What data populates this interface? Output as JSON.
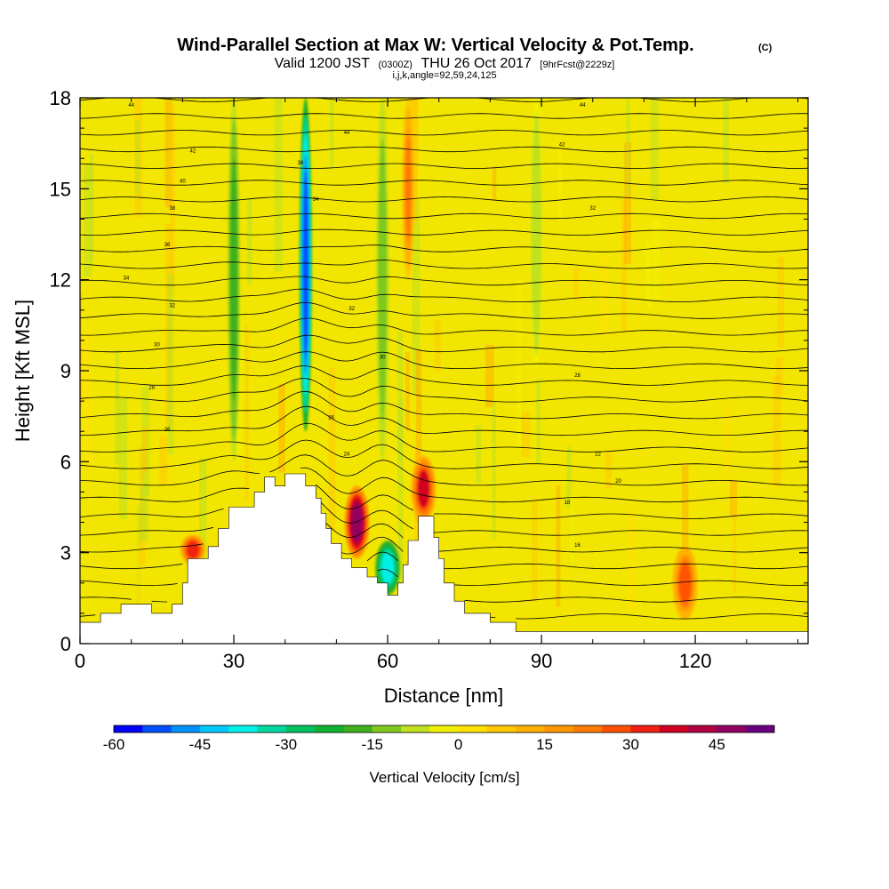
{
  "chart_data": {
    "type": "heatmap",
    "title": "Wind-Parallel Section at Max W: Vertical Velocity & Pot.Temp.",
    "title_mark": "(C)",
    "subtitle": {
      "valid": "Valid 1200 JST",
      "utc": "(0300Z)",
      "date": "THU 26 Oct 2017",
      "forecast": "[9hrFcst@2229z]"
    },
    "info_line": "i,j,k,angle=92,59,24,125",
    "xlabel": "Distance [nm]",
    "ylabel": "Height [Kft MSL]",
    "xlim": [
      0,
      142
    ],
    "ylim": [
      0,
      18
    ],
    "x_ticks": [
      "0",
      "30",
      "60",
      "90",
      "120"
    ],
    "x_tick_values": [
      0,
      30,
      60,
      90,
      120
    ],
    "y_ticks": [
      "0",
      "3",
      "6",
      "9",
      "12",
      "15",
      "18"
    ],
    "y_tick_values": [
      0,
      3,
      6,
      9,
      12,
      15,
      18
    ],
    "colorbar": {
      "title": "Vertical Velocity [cm/s]",
      "range": [
        -60,
        55
      ],
      "tick_labels": [
        "-60",
        "-45",
        "-30",
        "-15",
        "0",
        "15",
        "30",
        "45"
      ],
      "tick_values": [
        -60,
        -45,
        -30,
        -15,
        0,
        15,
        30,
        45
      ],
      "colors": [
        "#0000ff",
        "#0050ff",
        "#0090ff",
        "#00c8ff",
        "#00f0e8",
        "#00d8a0",
        "#00c060",
        "#10b030",
        "#40b020",
        "#80c820",
        "#c0e020",
        "#f0f000",
        "#ffe000",
        "#ffc800",
        "#ffb000",
        "#ff9800",
        "#ff7a00",
        "#ff5000",
        "#f02010",
        "#d00020",
        "#b00040",
        "#900060",
        "#6a0080"
      ]
    },
    "terrain_kft": [
      [
        0,
        0.7
      ],
      [
        4,
        0.7
      ],
      [
        4,
        1.0
      ],
      [
        8,
        1.0
      ],
      [
        8,
        1.3
      ],
      [
        14,
        1.3
      ],
      [
        14,
        1.0
      ],
      [
        18,
        1.0
      ],
      [
        18,
        1.3
      ],
      [
        20,
        1.3
      ],
      [
        20,
        2.0
      ],
      [
        21,
        2.0
      ],
      [
        21,
        2.8
      ],
      [
        25,
        2.8
      ],
      [
        25,
        3.2
      ],
      [
        27,
        3.2
      ],
      [
        27,
        3.8
      ],
      [
        29,
        3.8
      ],
      [
        29,
        4.5
      ],
      [
        34,
        4.5
      ],
      [
        34,
        5.0
      ],
      [
        36,
        5.0
      ],
      [
        36,
        5.5
      ],
      [
        38,
        5.5
      ],
      [
        38,
        5.2
      ],
      [
        40,
        5.2
      ],
      [
        40,
        5.6
      ],
      [
        44,
        5.6
      ],
      [
        44,
        5.2
      ],
      [
        46,
        5.2
      ],
      [
        46,
        4.8
      ],
      [
        47,
        4.8
      ],
      [
        47,
        4.3
      ],
      [
        48,
        4.3
      ],
      [
        48,
        3.8
      ],
      [
        49,
        3.8
      ],
      [
        49,
        3.3
      ],
      [
        51,
        3.3
      ],
      [
        51,
        2.8
      ],
      [
        53,
        2.8
      ],
      [
        53,
        2.5
      ],
      [
        56,
        2.5
      ],
      [
        56,
        2.2
      ],
      [
        58,
        2.2
      ],
      [
        58,
        2.0
      ],
      [
        60,
        2.0
      ],
      [
        60,
        1.6
      ],
      [
        62,
        1.6
      ],
      [
        62,
        2.0
      ],
      [
        63,
        2.0
      ],
      [
        63,
        2.6
      ],
      [
        64,
        2.6
      ],
      [
        64,
        3.4
      ],
      [
        66,
        3.4
      ],
      [
        66,
        4.2
      ],
      [
        69,
        4.2
      ],
      [
        69,
        3.5
      ],
      [
        70,
        3.5
      ],
      [
        70,
        2.8
      ],
      [
        71,
        2.8
      ],
      [
        71,
        2.0
      ],
      [
        73,
        2.0
      ],
      [
        73,
        1.4
      ],
      [
        75,
        1.4
      ],
      [
        75,
        1.0
      ],
      [
        80,
        1.0
      ],
      [
        80,
        0.7
      ],
      [
        85,
        0.7
      ],
      [
        85,
        0.4
      ],
      [
        142,
        0.4
      ]
    ],
    "vertical_velocity_features": [
      {
        "x": 44,
        "y_range": [
          7.0,
          18.0
        ],
        "value": -55
      },
      {
        "x": 54,
        "y_range": [
          2.8,
          5.2
        ],
        "value": 45
      },
      {
        "x": 60,
        "y_range": [
          1.6,
          3.4
        ],
        "value": -40
      },
      {
        "x": 67,
        "y_range": [
          4.0,
          6.2
        ],
        "value": 35
      },
      {
        "x": 30,
        "y_range": [
          6.0,
          18.0
        ],
        "value": -20
      },
      {
        "x": 59,
        "y_range": [
          6.0,
          18.0
        ],
        "value": -15
      },
      {
        "x": 64,
        "y_range": [
          12.0,
          18.0
        ],
        "value": 20
      },
      {
        "x": 89,
        "y_range": [
          9.0,
          18.0
        ],
        "value": -10
      },
      {
        "x": 118,
        "y_range": [
          0.8,
          3.2
        ],
        "value": 25
      },
      {
        "x": 22,
        "y_range": [
          2.6,
          3.6
        ],
        "value": 30
      }
    ],
    "contour_labels": [
      "44",
      "44",
      "44",
      "42",
      "40",
      "42",
      "38",
      "38",
      "36",
      "34",
      "34",
      "32",
      "32",
      "32",
      "30",
      "30",
      "28",
      "28",
      "26",
      "26",
      "24",
      "22",
      "20",
      "18",
      "16"
    ]
  }
}
